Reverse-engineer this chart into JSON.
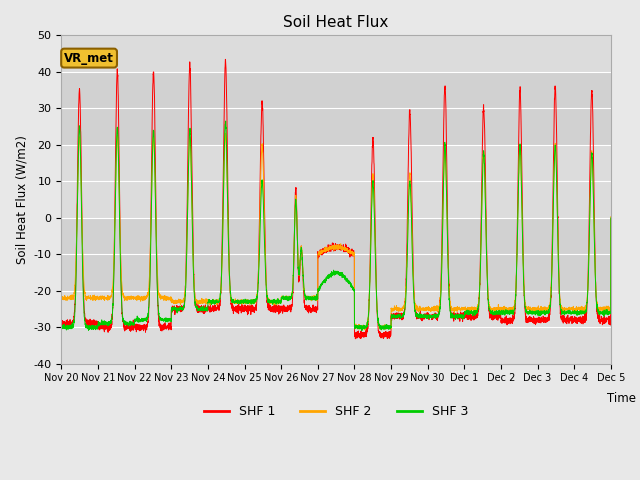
{
  "title": "Soil Heat Flux",
  "ylabel": "Soil Heat Flux (W/m2)",
  "xlabel": "Time",
  "ylim": [
    -40,
    50
  ],
  "colors": {
    "SHF 1": "#ff0000",
    "SHF 2": "#ffa500",
    "SHF 3": "#00cc00"
  },
  "legend_label": "VR_met",
  "background_color": "#e8e8e8",
  "plot_bg": "#dcdcdc",
  "tick_labels": [
    "Nov 20",
    "Nov 21",
    "Nov 22",
    "Nov 23",
    "Nov 24",
    "Nov 25",
    "Nov 26",
    "Nov 27",
    "Nov 28",
    "Nov 29",
    "Nov 30",
    "Dec 1",
    "Dec 2",
    "Dec 3",
    "Dec 4",
    "Dec 5"
  ],
  "yticks": [
    -40,
    -30,
    -20,
    -10,
    0,
    10,
    20,
    30,
    40,
    50
  ],
  "day_peaks_shf1": [
    35,
    40,
    40,
    42,
    43,
    32,
    8,
    -10,
    22,
    29,
    36,
    30,
    35,
    36,
    35
  ],
  "day_peaks_shf2": [
    22,
    22,
    22,
    22,
    23,
    20,
    6,
    -10,
    12,
    12,
    18,
    18,
    20,
    20,
    18
  ],
  "day_peaks_shf3": [
    25,
    25,
    24,
    24,
    26,
    10,
    5,
    -20,
    10,
    10,
    20,
    18,
    20,
    20,
    18
  ],
  "night_trough_shf1": [
    -29,
    -30,
    -30,
    -25,
    -25,
    -25,
    -25,
    -32,
    -32,
    -27,
    -27,
    -27,
    -28,
    -28,
    -28
  ],
  "night_trough_shf2": [
    -22,
    -22,
    -22,
    -23,
    -23,
    -23,
    -22,
    -30,
    -30,
    -25,
    -25,
    -25,
    -25,
    -25,
    -25
  ],
  "night_trough_shf3": [
    -30,
    -29,
    -28,
    -25,
    -23,
    -23,
    -22,
    -20,
    -30,
    -27,
    -27,
    -26,
    -26,
    -26,
    -26
  ]
}
